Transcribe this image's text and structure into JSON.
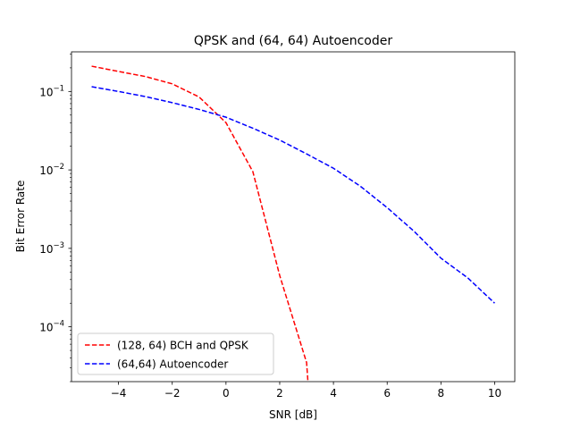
{
  "chart_data": {
    "type": "line",
    "title": "QPSK and (64, 64) Autoencoder",
    "xlabel": "SNR [dB]",
    "ylabel": "Bit Error Rate",
    "xlim": [
      -5.75,
      10.75
    ],
    "ylim": [
      2e-05,
      0.32
    ],
    "yscale": "log",
    "x_ticks": [
      -4,
      -2,
      0,
      2,
      4,
      6,
      8,
      10
    ],
    "x_tick_labels": [
      "−4",
      "−2",
      "0",
      "2",
      "4",
      "6",
      "8",
      "10"
    ],
    "y_major_ticks": [
      0.0001,
      0.001,
      0.01,
      0.1
    ],
    "y_tick_labels": [
      {
        "base": "10",
        "exp": "−4"
      },
      {
        "base": "10",
        "exp": "−3"
      },
      {
        "base": "10",
        "exp": "−2"
      },
      {
        "base": "10",
        "exp": "−1"
      }
    ],
    "grid": false,
    "legend_position": "lower-left",
    "series": [
      {
        "name": "(128, 64) BCH and QPSK",
        "color": "#ff0000",
        "line_style": "dashed",
        "x": [
          -5,
          -4,
          -3,
          -2,
          -1,
          0,
          1,
          2,
          3,
          3.05
        ],
        "y": [
          0.21,
          0.18,
          0.155,
          0.125,
          0.085,
          0.04,
          0.0095,
          0.00045,
          3.5e-05,
          2e-05
        ]
      },
      {
        "name": "(64,64) Autoencoder",
        "color": "#0000ff",
        "line_style": "dashed",
        "x": [
          -5,
          -4,
          -3,
          -2,
          -1,
          0,
          1,
          2,
          3,
          4,
          5,
          6,
          7,
          8,
          9,
          10
        ],
        "y": [
          0.115,
          0.1,
          0.086,
          0.072,
          0.059,
          0.047,
          0.034,
          0.024,
          0.016,
          0.0105,
          0.0062,
          0.0033,
          0.00165,
          0.00075,
          0.00042,
          0.0002
        ]
      }
    ]
  }
}
